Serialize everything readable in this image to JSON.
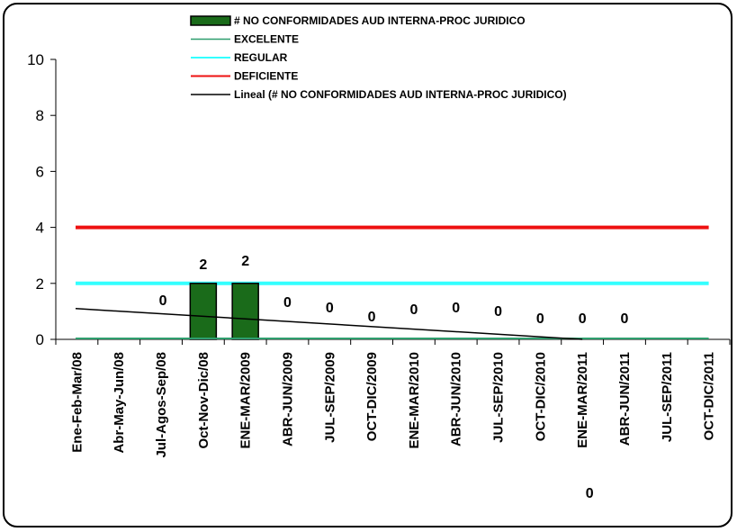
{
  "chart_data": {
    "type": "bar",
    "categories": [
      "Ene-Feb-Mar/08",
      "Abr-May-Jun/08",
      "Jul-Agos-Sep/08",
      "Oct-Nov-Dic/08",
      "ENE-MAR/2009",
      "ABR-JUN/2009",
      "JUL-SEP/2009",
      "OCT-DIC/2009",
      "ENE-MAR/2010",
      "ABR-JUN/2010",
      "JUL-SEP/2010",
      "OCT-DIC/2010",
      "ENE-MAR/2011",
      "ABR-JUN/2011",
      "JUL-SEP/2011",
      "OCT-DIC/2011"
    ],
    "ylim": [
      0,
      10
    ],
    "yticks": [
      0,
      2,
      4,
      6,
      8,
      10
    ],
    "ytick_labels": [
      "0",
      "2",
      "4",
      "6",
      "8",
      "10"
    ],
    "grid": false,
    "legend_position": "top",
    "series": [
      {
        "name": "# NO CONFORMIDADES AUD INTERNA-PROC JURIDICO",
        "kind": "bar",
        "color": "#1a6b1a",
        "values": [
          null,
          null,
          0,
          2,
          2,
          0,
          0,
          0,
          0,
          0,
          0,
          0,
          0,
          0,
          null,
          null
        ]
      },
      {
        "name": "EXCELENTE",
        "kind": "line",
        "color": "#2e9e6e",
        "values": [
          0,
          0,
          0,
          0,
          0,
          0,
          0,
          0,
          0,
          0,
          0,
          0,
          0,
          0,
          0,
          0
        ]
      },
      {
        "name": "REGULAR",
        "kind": "line",
        "color": "#33ffff",
        "values": [
          2,
          2,
          2,
          2,
          2,
          2,
          2,
          2,
          2,
          2,
          2,
          2,
          2,
          2,
          2,
          2
        ]
      },
      {
        "name": "DEFICIENTE",
        "kind": "line",
        "color": "#ee1111",
        "values": [
          4,
          4,
          4,
          4,
          4,
          4,
          4,
          4,
          4,
          4,
          4,
          4,
          4,
          4,
          4,
          4
        ]
      },
      {
        "name": "Lineal (# NO CONFORMIDADES AUD INTERNA-PROC JURIDICO)",
        "kind": "trendline",
        "color": "#000000",
        "start": 1.1,
        "end": 0
      }
    ],
    "data_labels": [
      {
        "category": "Jul-Agos-Sep/08",
        "value": 0,
        "text": "0"
      },
      {
        "category": "Oct-Nov-Dic/08",
        "value": 2,
        "text": "2"
      },
      {
        "category": "ENE-MAR/2009",
        "value": 2,
        "text": "2"
      },
      {
        "category": "ABR-JUN/2009",
        "value": 0,
        "text": "0"
      },
      {
        "category": "JUL-SEP/2009",
        "value": 0,
        "text": "0"
      },
      {
        "category": "OCT-DIC/2009",
        "value": 0,
        "text": "0"
      },
      {
        "category": "ENE-MAR/2010",
        "value": 0,
        "text": "0"
      },
      {
        "category": "ABR-JUN/2010",
        "value": 0,
        "text": "0"
      },
      {
        "category": "JUL-SEP/2010",
        "value": 0,
        "text": "0"
      },
      {
        "category": "OCT-DIC/2010",
        "value": 0,
        "text": "0"
      },
      {
        "category": "ENE-MAR/2011",
        "value": 0,
        "text": "0"
      },
      {
        "category": "ABR-JUN/2011",
        "value": 0,
        "text": "0"
      }
    ],
    "extra_label": {
      "text": "0",
      "category": "ENE-MAR/2011"
    }
  }
}
